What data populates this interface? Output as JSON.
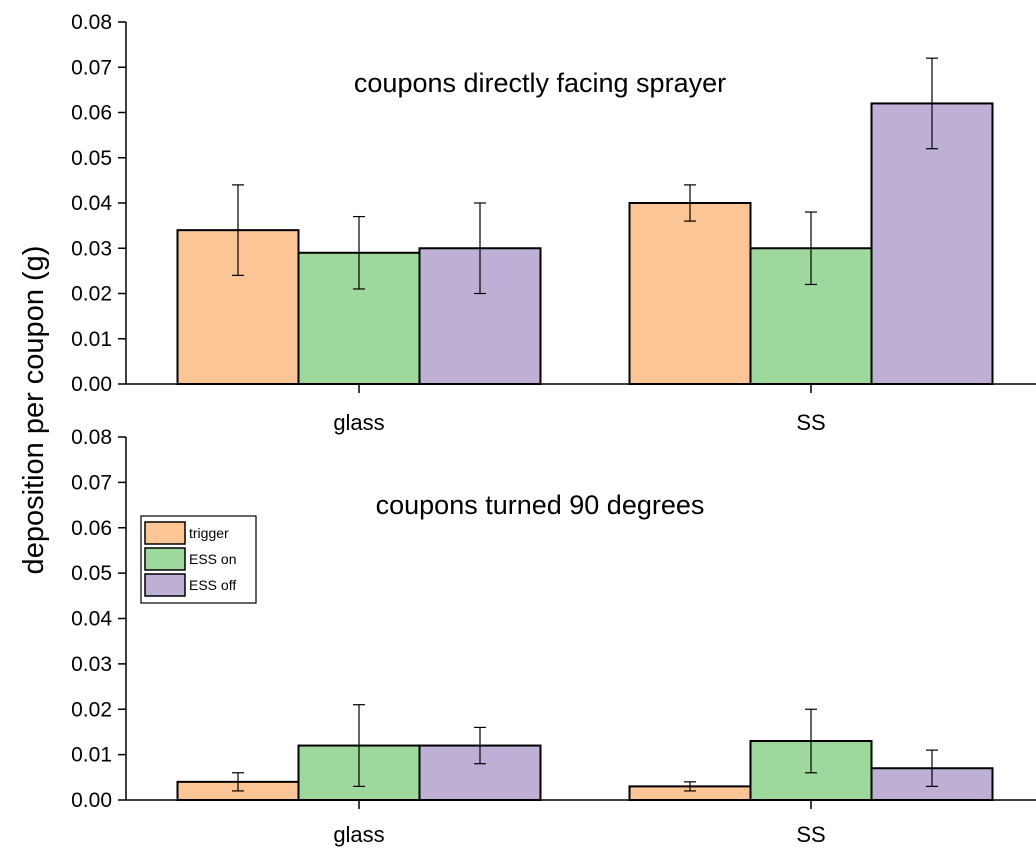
{
  "chart_data": {
    "type": "bar",
    "ylabel": "deposition per coupon (g)",
    "legend": {
      "placement": "left, lower panel",
      "entries": [
        {
          "name": "trigger",
          "color": "#fbc596"
        },
        {
          "name": "ESS on",
          "color": "#9ed89c"
        },
        {
          "name": "ESS off",
          "color": "#beafd5"
        }
      ]
    },
    "panels": [
      {
        "title": "coupons directly facing sprayer",
        "categories": [
          "glass",
          "SS"
        ],
        "ylim": [
          0,
          0.08
        ],
        "yticks": [
          "0.00",
          "0.01",
          "0.02",
          "0.03",
          "0.04",
          "0.05",
          "0.06",
          "0.07",
          "0.08"
        ],
        "series": [
          {
            "name": "trigger",
            "values": [
              0.034,
              0.04
            ],
            "errors": [
              0.01,
              0.004
            ]
          },
          {
            "name": "ESS on",
            "values": [
              0.029,
              0.03
            ],
            "errors": [
              0.008,
              0.008
            ]
          },
          {
            "name": "ESS off",
            "values": [
              0.03,
              0.062
            ],
            "errors": [
              0.01,
              0.01
            ]
          }
        ]
      },
      {
        "title": "coupons turned 90 degrees",
        "categories": [
          "glass",
          "SS"
        ],
        "ylim": [
          0,
          0.08
        ],
        "yticks": [
          "0.00",
          "0.01",
          "0.02",
          "0.03",
          "0.04",
          "0.05",
          "0.06",
          "0.07",
          "0.08"
        ],
        "series": [
          {
            "name": "trigger",
            "values": [
              0.004,
              0.003
            ],
            "errors": [
              0.002,
              0.001
            ]
          },
          {
            "name": "ESS on",
            "values": [
              0.012,
              0.013
            ],
            "errors": [
              0.009,
              0.007
            ]
          },
          {
            "name": "ESS off",
            "values": [
              0.012,
              0.007
            ],
            "errors": [
              0.004,
              0.004
            ]
          }
        ]
      }
    ]
  }
}
